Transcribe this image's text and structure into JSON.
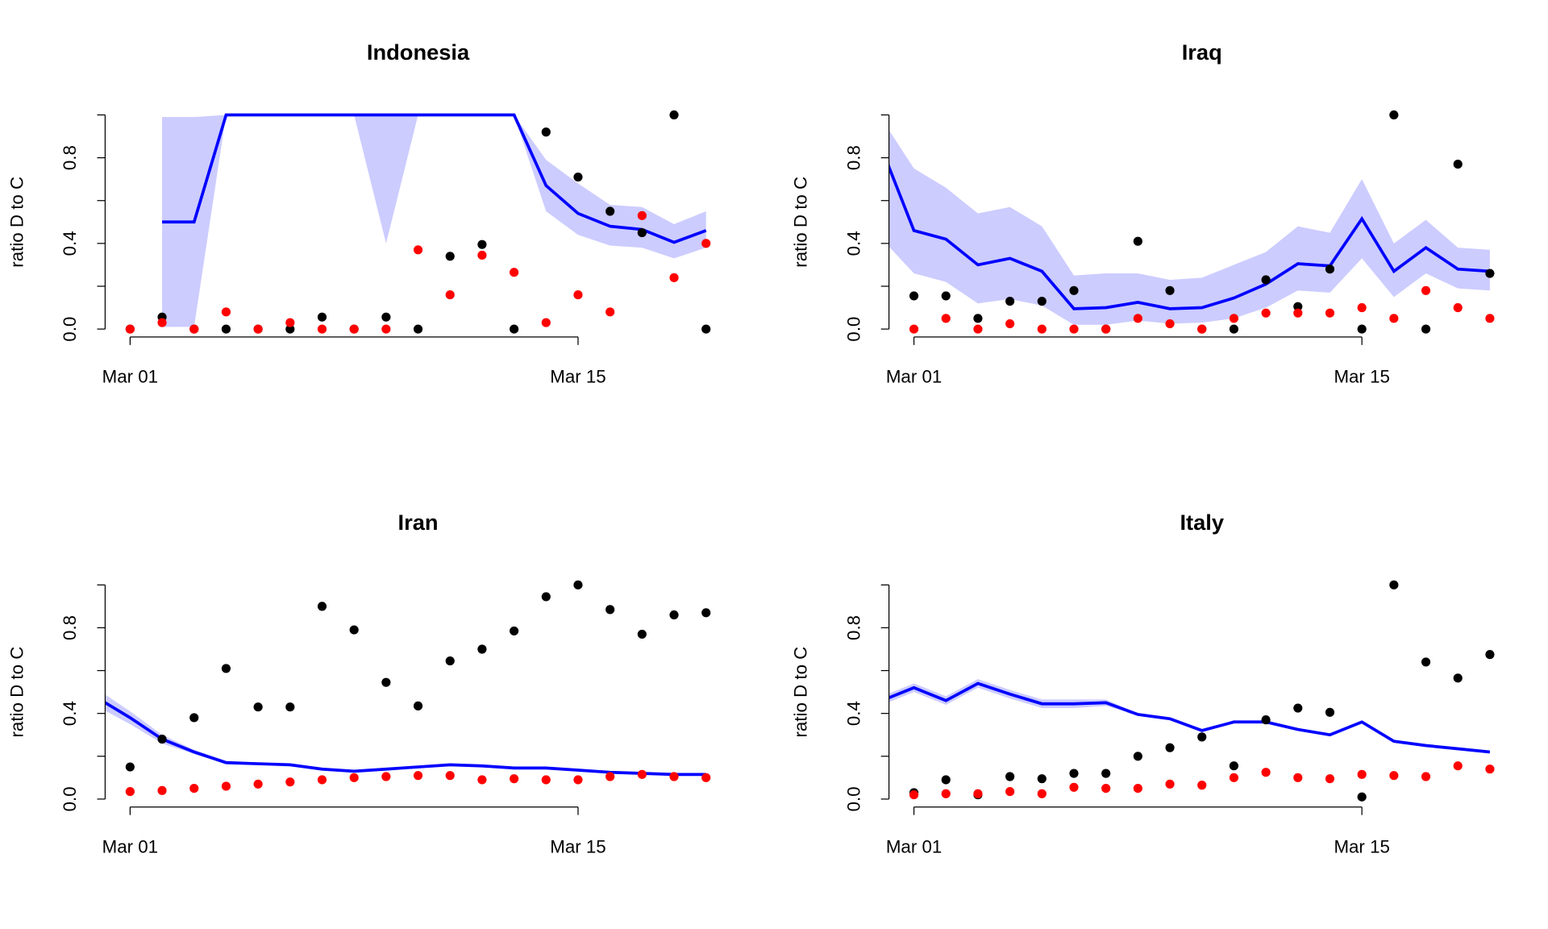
{
  "chart_data": [
    {
      "type": "line",
      "title": "Indonesia",
      "ylabel": "ratio D to C",
      "x": [
        0,
        1,
        2,
        3,
        4,
        5,
        6,
        7,
        8,
        9,
        10,
        11,
        12,
        13,
        14,
        15,
        16,
        17,
        18,
        19
      ],
      "xlim": [
        0.22,
        19.78
      ],
      "ylim": [
        -0.037,
        1.037
      ],
      "xticks": [
        {
          "value": 1,
          "label": "Mar 01"
        },
        {
          "value": 15,
          "label": "Mar 15"
        }
      ],
      "yticks": [
        {
          "value": 0,
          "label": "0.0"
        },
        {
          "value": 0.2,
          "label": null
        },
        {
          "value": 0.4,
          "label": "0.4"
        },
        {
          "value": 0.6,
          "label": null
        },
        {
          "value": 0.8,
          "label": "0.8"
        },
        {
          "value": 1,
          "label": null
        }
      ],
      "series": [
        {
          "color": "#0000ff",
          "values": [
            null,
            null,
            0.5,
            0.5,
            1,
            1,
            1,
            1,
            1,
            1,
            1,
            1,
            1,
            1,
            0.67,
            0.54,
            0.48,
            0.465,
            0.405,
            0.46
          ]
        }
      ],
      "band": {
        "color": "#ccccff",
        "upper": [
          null,
          null,
          0.99,
          0.99,
          1,
          1,
          1,
          1,
          1,
          1,
          1,
          1,
          1,
          1,
          0.79,
          0.68,
          0.58,
          0.57,
          0.49,
          0.55
        ],
        "lower": [
          null,
          null,
          0.01,
          0.01,
          1,
          1,
          1,
          1,
          1,
          0.4,
          1,
          1,
          1,
          1,
          0.55,
          0.44,
          0.39,
          0.38,
          0.33,
          0.38
        ]
      },
      "points": [
        {
          "color": "#000000",
          "values": [
            null,
            0,
            0.056,
            0,
            0,
            0,
            0,
            0.056,
            0,
            0.056,
            0,
            0.34,
            0.395,
            0,
            0.92,
            0.71,
            0.55,
            0.45,
            1,
            0
          ]
        },
        {
          "color": "#ff0000",
          "values": [
            null,
            0,
            0.03,
            0,
            0.08,
            0,
            0.03,
            0,
            0,
            0,
            0.37,
            0.16,
            0.345,
            0.265,
            0.03,
            0.16,
            0.08,
            0.53,
            0.24,
            0.4
          ]
        }
      ]
    },
    {
      "type": "line",
      "title": "Iraq",
      "ylabel": "ratio D to C",
      "x": [
        0,
        1,
        2,
        3,
        4,
        5,
        6,
        7,
        8,
        9,
        10,
        11,
        12,
        13,
        14,
        15,
        16,
        17,
        18,
        19
      ],
      "xlim": [
        0.22,
        19.78
      ],
      "ylim": [
        -0.037,
        1.037
      ],
      "xticks": [
        {
          "value": 1,
          "label": "Mar 01"
        },
        {
          "value": 15,
          "label": "Mar 15"
        }
      ],
      "yticks": [
        {
          "value": 0,
          "label": "0.0"
        },
        {
          "value": 0.2,
          "label": null
        },
        {
          "value": 0.4,
          "label": "0.4"
        },
        {
          "value": 0.6,
          "label": null
        },
        {
          "value": 0.8,
          "label": "0.8"
        },
        {
          "value": 1,
          "label": null
        }
      ],
      "series": [
        {
          "color": "#0000ff",
          "values": [
            0.84,
            0.46,
            0.42,
            0.3,
            0.33,
            0.27,
            0.095,
            0.1,
            0.125,
            0.095,
            0.1,
            0.145,
            0.21,
            0.305,
            0.295,
            0.515,
            0.27,
            0.38,
            0.28,
            0.27
          ]
        }
      ],
      "band": {
        "color": "#ccccff",
        "upper": [
          0.98,
          0.75,
          0.66,
          0.54,
          0.57,
          0.48,
          0.25,
          0.26,
          0.26,
          0.23,
          0.24,
          0.3,
          0.36,
          0.48,
          0.45,
          0.7,
          0.4,
          0.51,
          0.38,
          0.37
        ],
        "lower": [
          0.42,
          0.26,
          0.22,
          0.12,
          0.14,
          0.11,
          0.02,
          0.02,
          0.04,
          0.025,
          0.03,
          0.05,
          0.1,
          0.18,
          0.17,
          0.33,
          0.15,
          0.26,
          0.19,
          0.18
        ]
      },
      "points": [
        {
          "color": "#000000",
          "values": [
            null,
            0.155,
            0.155,
            0.05,
            0.13,
            0.13,
            0.18,
            0,
            0.41,
            0.18,
            0,
            0,
            0.23,
            0.105,
            0.28,
            0,
            1,
            0,
            0.77,
            0.26
          ]
        },
        {
          "color": "#ff0000",
          "values": [
            null,
            0,
            0.05,
            0,
            0.025,
            0,
            0,
            0,
            0.05,
            0.025,
            0,
            0.05,
            0.075,
            0.075,
            0.075,
            0.1,
            0.05,
            0.18,
            0.1,
            0.05
          ]
        }
      ]
    },
    {
      "type": "line",
      "title": "Iran",
      "ylabel": "ratio D to C",
      "x": [
        0,
        1,
        2,
        3,
        4,
        5,
        6,
        7,
        8,
        9,
        10,
        11,
        12,
        13,
        14,
        15,
        16,
        17,
        18,
        19
      ],
      "xlim": [
        0.22,
        19.78
      ],
      "ylim": [
        -0.037,
        1.037
      ],
      "xticks": [
        {
          "value": 1,
          "label": "Mar 01"
        },
        {
          "value": 15,
          "label": "Mar 15"
        }
      ],
      "yticks": [
        {
          "value": 0,
          "label": "0.0"
        },
        {
          "value": 0.2,
          "label": null
        },
        {
          "value": 0.4,
          "label": "0.4"
        },
        {
          "value": 0.6,
          "label": null
        },
        {
          "value": 0.8,
          "label": "0.8"
        },
        {
          "value": 1,
          "label": null
        }
      ],
      "series": [
        {
          "color": "#0000ff",
          "values": [
            0.47,
            0.38,
            0.28,
            0.22,
            0.17,
            0.165,
            0.16,
            0.14,
            0.13,
            0.14,
            0.15,
            0.16,
            0.155,
            0.145,
            0.145,
            0.135,
            0.125,
            0.12,
            0.115,
            0.115
          ]
        }
      ],
      "band": {
        "color": "#ccccff",
        "upper": [
          0.51,
          0.41,
          0.3,
          0.23,
          0.18,
          0.17,
          0.165,
          0.145,
          0.135,
          0.145,
          0.155,
          0.165,
          0.16,
          0.15,
          0.15,
          0.14,
          0.13,
          0.125,
          0.12,
          0.12
        ],
        "lower": [
          0.43,
          0.35,
          0.26,
          0.21,
          0.165,
          0.16,
          0.155,
          0.135,
          0.125,
          0.135,
          0.145,
          0.155,
          0.15,
          0.14,
          0.14,
          0.13,
          0.12,
          0.115,
          0.11,
          0.11
        ]
      },
      "points": [
        {
          "color": "#000000",
          "values": [
            null,
            0.15,
            0.28,
            0.38,
            0.61,
            0.43,
            0.43,
            0.9,
            0.79,
            0.545,
            0.435,
            0.645,
            0.7,
            0.785,
            0.945,
            1,
            0.885,
            0.77,
            0.86,
            0.87
          ]
        },
        {
          "color": "#ff0000",
          "values": [
            null,
            0.035,
            0.04,
            0.05,
            0.06,
            0.07,
            0.08,
            0.09,
            0.1,
            0.105,
            0.11,
            0.11,
            0.09,
            0.095,
            0.09,
            0.09,
            0.105,
            0.115,
            0.105,
            0.1
          ]
        }
      ]
    },
    {
      "type": "line",
      "title": "Italy",
      "ylabel": "ratio D to C",
      "x": [
        0,
        1,
        2,
        3,
        4,
        5,
        6,
        7,
        8,
        9,
        10,
        11,
        12,
        13,
        14,
        15,
        16,
        17,
        18,
        19
      ],
      "xlim": [
        0.22,
        19.78
      ],
      "ylim": [
        -0.037,
        1.037
      ],
      "xticks": [
        {
          "value": 1,
          "label": "Mar 01"
        },
        {
          "value": 15,
          "label": "Mar 15"
        }
      ],
      "yticks": [
        {
          "value": 0,
          "label": "0.0"
        },
        {
          "value": 0.2,
          "label": null
        },
        {
          "value": 0.4,
          "label": "0.4"
        },
        {
          "value": 0.6,
          "label": null
        },
        {
          "value": 0.8,
          "label": "0.8"
        },
        {
          "value": 1,
          "label": null
        }
      ],
      "series": [
        {
          "color": "#0000ff",
          "values": [
            0.46,
            0.52,
            0.46,
            0.54,
            0.49,
            0.445,
            0.445,
            0.45,
            0.395,
            0.375,
            0.32,
            0.36,
            0.36,
            0.325,
            0.3,
            0.36,
            0.27,
            0.25,
            0.235,
            0.22
          ]
        }
      ],
      "band": {
        "color": "#ccccff",
        "upper": [
          0.48,
          0.54,
          0.48,
          0.56,
          0.51,
          0.465,
          0.465,
          0.465,
          0.4,
          0.38,
          0.325,
          0.365,
          0.365,
          0.33,
          0.305,
          0.365,
          0.275,
          0.255,
          0.24,
          0.225
        ],
        "lower": [
          0.44,
          0.5,
          0.44,
          0.52,
          0.47,
          0.425,
          0.425,
          0.435,
          0.39,
          0.37,
          0.315,
          0.355,
          0.355,
          0.32,
          0.295,
          0.355,
          0.265,
          0.245,
          0.23,
          0.215
        ]
      },
      "points": [
        {
          "color": "#000000",
          "values": [
            null,
            0.03,
            0.09,
            0.02,
            0.105,
            0.095,
            0.12,
            0.12,
            0.2,
            0.24,
            0.29,
            0.155,
            0.37,
            0.425,
            0.405,
            0.01,
            1,
            0.64,
            0.565,
            0.675
          ]
        },
        {
          "color": "#ff0000",
          "values": [
            null,
            0.02,
            0.025,
            0.025,
            0.035,
            0.025,
            0.055,
            0.05,
            0.05,
            0.07,
            0.065,
            0.1,
            0.125,
            0.1,
            0.095,
            0.115,
            0.11,
            0.105,
            0.155,
            0.14
          ]
        }
      ]
    }
  ]
}
